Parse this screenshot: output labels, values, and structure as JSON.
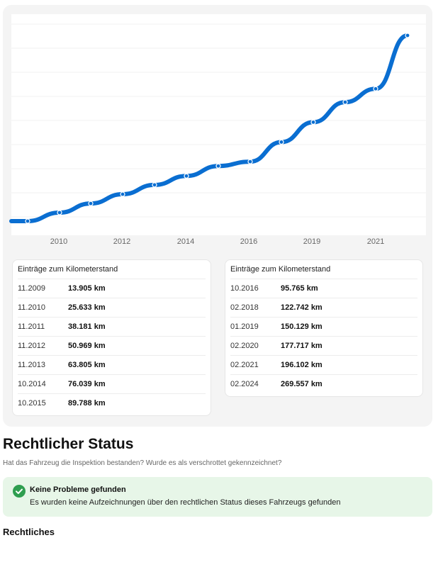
{
  "chart_data": {
    "type": "line",
    "title": "",
    "xlabel": "",
    "ylabel": "",
    "x_ticks": [
      "2010",
      "2012",
      "2014",
      "2016",
      "2019",
      "2021"
    ],
    "grid": true,
    "series": [
      {
        "values": [
          {
            "date": "11.2009",
            "km": 13905
          },
          {
            "date": "11.2010",
            "km": 25633
          },
          {
            "date": "11.2011",
            "km": 38181
          },
          {
            "date": "11.2012",
            "km": 50969
          },
          {
            "date": "11.2013",
            "km": 63805
          },
          {
            "date": "10.2014",
            "km": 76039
          },
          {
            "date": "10.2015",
            "km": 89788
          },
          {
            "date": "10.2016",
            "km": 95765
          },
          {
            "date": "02.2018",
            "km": 122742
          },
          {
            "date": "01.2019",
            "km": 150129
          },
          {
            "date": "02.2020",
            "km": 177717
          },
          {
            "date": "02.2021",
            "km": 196102
          },
          {
            "date": "02.2024",
            "km": 269557
          }
        ]
      }
    ],
    "line_color": "#0a6ed1"
  },
  "tables": [
    {
      "title": "Einträge zum Kilometerstand",
      "rows": [
        {
          "date": "11.2009",
          "km": "13.905 km"
        },
        {
          "date": "11.2010",
          "km": "25.633 km"
        },
        {
          "date": "11.2011",
          "km": "38.181 km"
        },
        {
          "date": "11.2012",
          "km": "50.969 km"
        },
        {
          "date": "11.2013",
          "km": "63.805 km"
        },
        {
          "date": "10.2014",
          "km": "76.039 km"
        },
        {
          "date": "10.2015",
          "km": "89.788 km"
        }
      ]
    },
    {
      "title": "Einträge zum Kilometerstand",
      "rows": [
        {
          "date": "10.2016",
          "km": "95.765 km"
        },
        {
          "date": "02.2018",
          "km": "122.742 km"
        },
        {
          "date": "01.2019",
          "km": "150.129 km"
        },
        {
          "date": "02.2020",
          "km": "177.717 km"
        },
        {
          "date": "02.2021",
          "km": "196.102 km"
        },
        {
          "date": "02.2024",
          "km": "269.557 km"
        }
      ]
    }
  ],
  "legal": {
    "title": "Rechtlicher Status",
    "subtitle": "Hat das Fahrzeug die Inspektion bestanden? Wurde es als verschrottet gekennzeichnet?",
    "status": {
      "icon": "check-circle-icon",
      "color": "#2e9e4f",
      "title": "Keine Probleme gefunden",
      "text": "Es wurden keine Aufzeichnungen über den rechtlichen Status dieses Fahrzeugs gefunden"
    },
    "section_heading": "Rechtliches"
  }
}
